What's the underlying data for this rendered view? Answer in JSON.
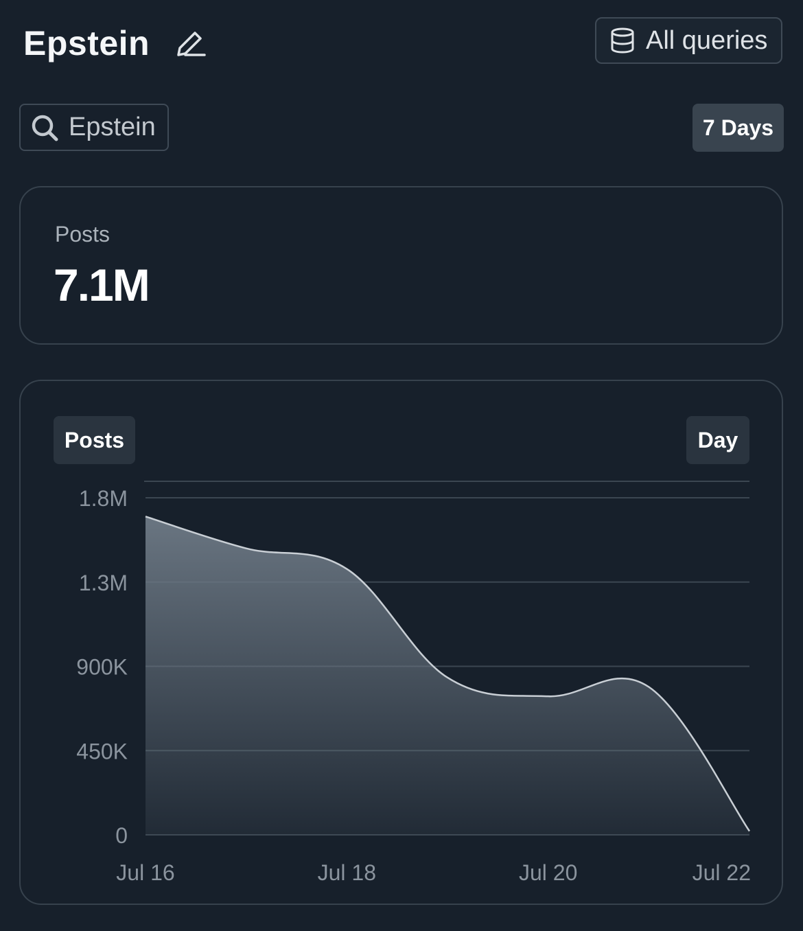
{
  "header": {
    "title": "Epstein",
    "edit_icon": "pencil-icon",
    "all_queries": {
      "label": "All queries",
      "icon": "database-icon"
    }
  },
  "search": {
    "value": "Epstein",
    "icon": "search-icon"
  },
  "range": {
    "label": "7 Days"
  },
  "summary": {
    "label": "Posts",
    "value": "7.1M"
  },
  "chart": {
    "metric_label": "Posts",
    "interval_label": "Day"
  },
  "colors": {
    "background": "#17202b",
    "line": "#c9cfd5",
    "fill_top": "#6e7a86",
    "grid": "#3b4651"
  },
  "chart_data": {
    "type": "area",
    "x": [
      "2024-07-16",
      "2024-07-17",
      "2024-07-18",
      "2024-07-19",
      "2024-07-20",
      "2024-07-21",
      "2024-07-22"
    ],
    "x_tick_labels": [
      "Jul 16",
      "Jul 18",
      "Jul 20",
      "Jul 22"
    ],
    "x_tick_positions": [
      "2024-07-16",
      "2024-07-18",
      "2024-07-20",
      "2024-07-22"
    ],
    "values": [
      1700000,
      1530000,
      1420000,
      840000,
      740000,
      790000,
      20000
    ],
    "y_tick_labels": [
      "0",
      "450K",
      "900K",
      "1.3M",
      "1.8M"
    ],
    "y_tick_values": [
      0,
      450000,
      900000,
      1350000,
      1800000
    ],
    "ylim": [
      0,
      1800000
    ],
    "grid": true,
    "legend": "none"
  }
}
